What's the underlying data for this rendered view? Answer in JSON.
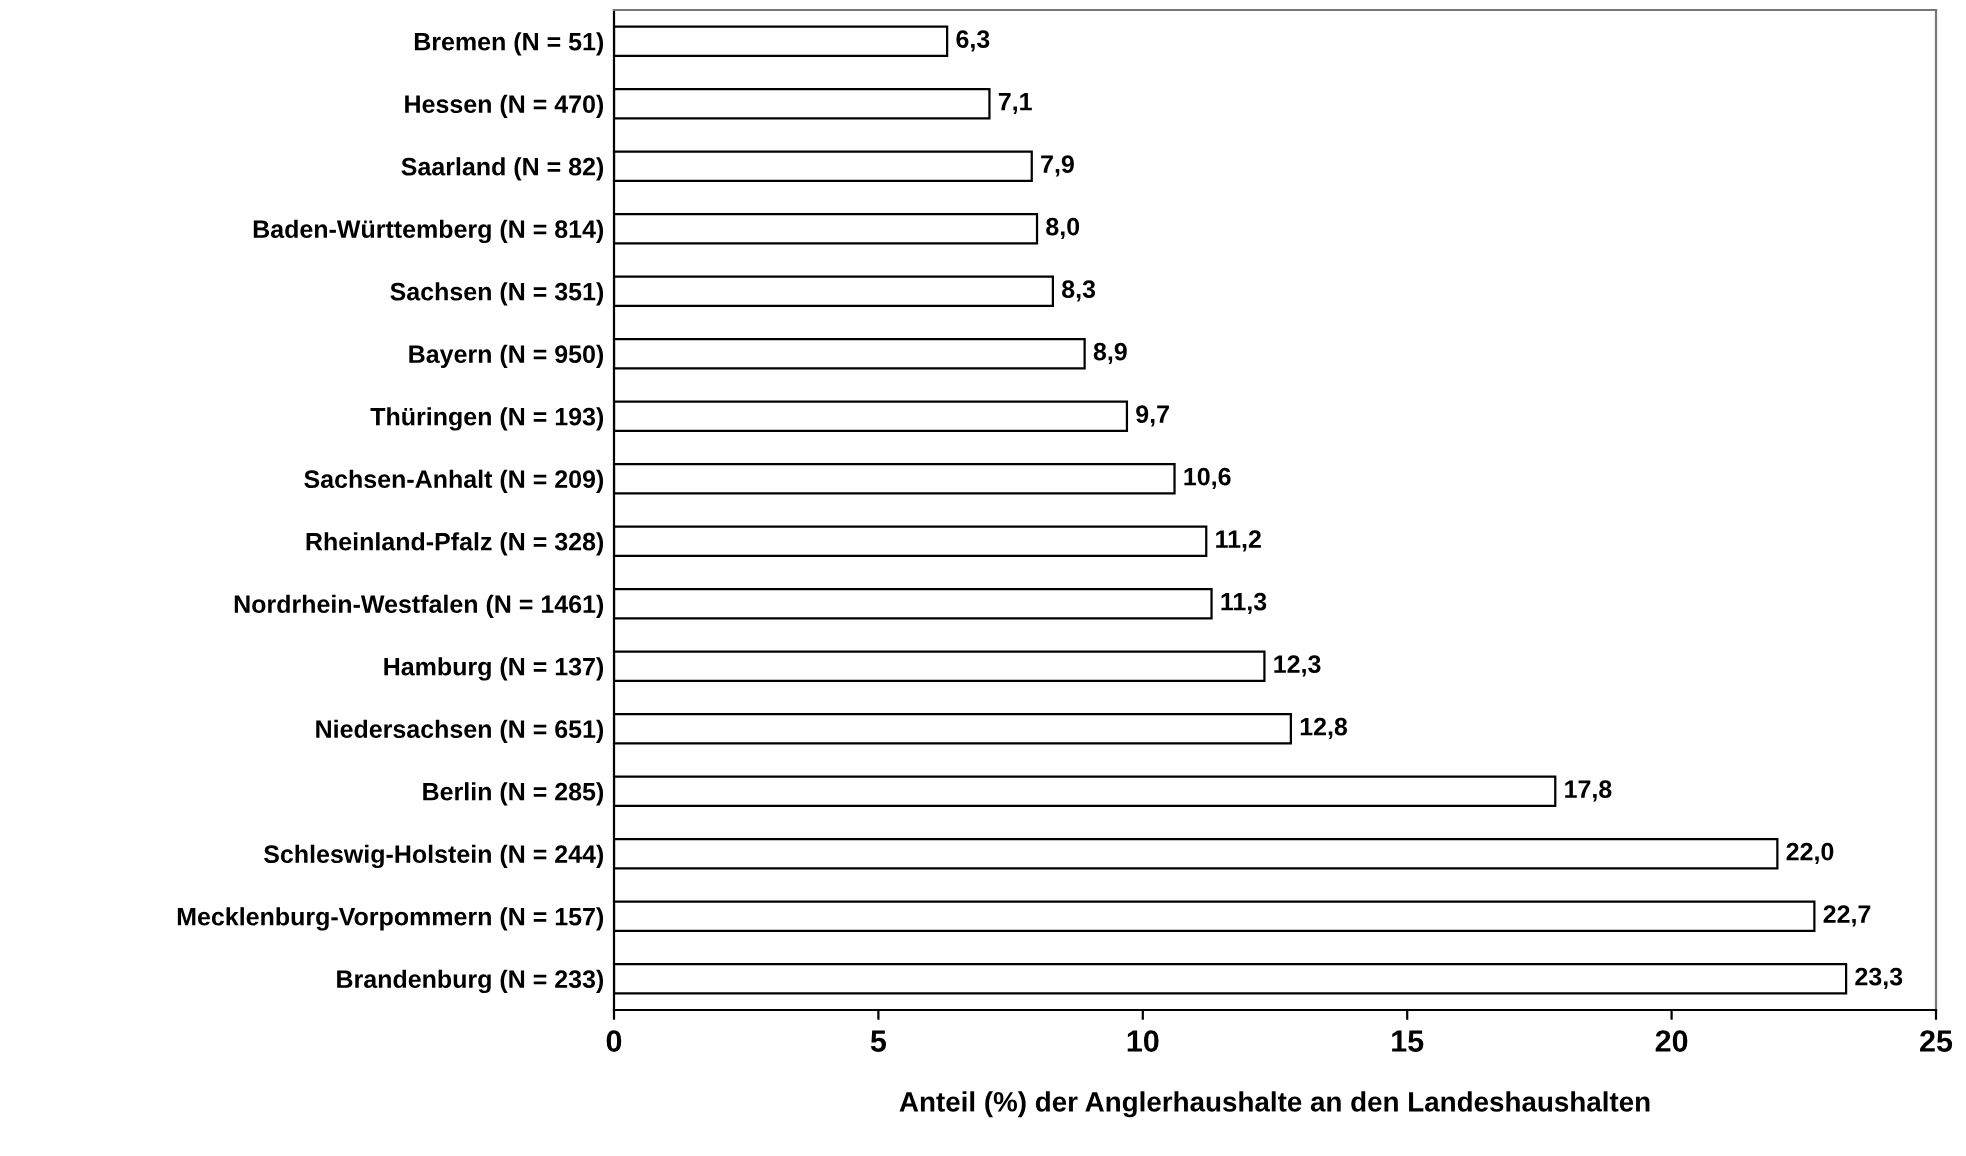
{
  "chart_data": {
    "type": "bar",
    "orientation": "horizontal",
    "xlabel": "Anteil (%) der Anglerhaushalte an den Landeshaushalten",
    "categories": [
      "Bremen (N = 51)",
      "Hessen (N = 470)",
      "Saarland (N = 82)",
      "Baden-Württemberg (N = 814)",
      "Sachsen (N = 351)",
      "Bayern (N = 950)",
      "Thüringen (N = 193)",
      "Sachsen-Anhalt (N = 209)",
      "Rheinland-Pfalz (N = 328)",
      "Nordrhein-Westfalen (N = 1461)",
      "Hamburg (N = 137)",
      "Niedersachsen (N = 651)",
      "Berlin (N = 285)",
      "Schleswig-Holstein (N = 244)",
      "Mecklenburg-Vorpommern (N = 157)",
      "Brandenburg (N = 233)"
    ],
    "values": [
      6.3,
      7.1,
      7.9,
      8.0,
      8.3,
      8.9,
      9.7,
      10.6,
      11.2,
      11.3,
      12.3,
      12.8,
      17.8,
      22.0,
      22.7,
      23.3
    ],
    "value_labels": [
      "6,3",
      "7,1",
      "7,9",
      "8,0",
      "8,3",
      "8,9",
      "9,7",
      "10,6",
      "11,2",
      "11,3",
      "12,3",
      "12,8",
      "17,8",
      "22,0",
      "22,7",
      "23,3"
    ],
    "color": "#ffffff",
    "xlim": [
      0,
      25
    ],
    "xticks": [
      0,
      5,
      10,
      15,
      20,
      25
    ],
    "grid": false,
    "legend": false
  }
}
